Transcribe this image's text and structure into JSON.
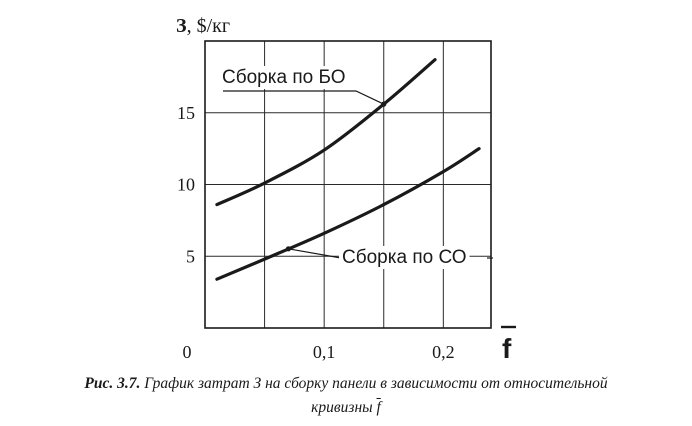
{
  "chart_data": {
    "type": "line",
    "ylabel_prefix": "З",
    "ylabel_suffix": ", $/кг",
    "xlabel": "f",
    "xlim": [
      0,
      0.24
    ],
    "ylim": [
      0,
      20
    ],
    "x_ticks": [
      {
        "value": 0,
        "label": "0"
      },
      {
        "value": 0.1,
        "label": "0,1"
      },
      {
        "value": 0.2,
        "label": "0,2"
      }
    ],
    "y_ticks": [
      {
        "value": 5,
        "label": "5"
      },
      {
        "value": 10,
        "label": "10"
      },
      {
        "value": 15,
        "label": "15"
      }
    ],
    "grid": true,
    "series": [
      {
        "name": "Сборка по БО",
        "x": [
          0.01,
          0.05,
          0.1,
          0.15,
          0.193
        ],
        "y": [
          8.6,
          10.1,
          12.4,
          15.6,
          18.7
        ]
      },
      {
        "name": "Сборка по СО",
        "x": [
          0.01,
          0.05,
          0.1,
          0.15,
          0.2,
          0.23
        ],
        "y": [
          3.4,
          4.8,
          6.6,
          8.6,
          10.9,
          12.5
        ]
      }
    ]
  },
  "caption": {
    "lead": "Рис. 3.7.",
    "text": " График затрат З на сборку панели в зависимости от относительной",
    "line2": "кривизны ",
    "symbol": "f"
  }
}
